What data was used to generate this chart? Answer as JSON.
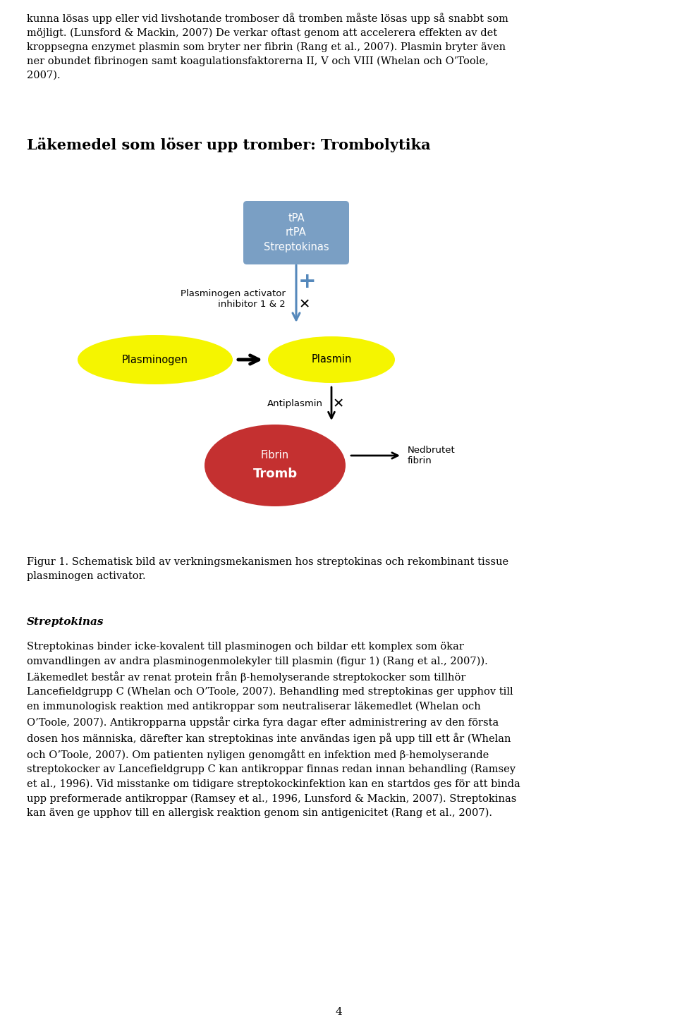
{
  "intro_text": "kunna lösas upp eller vid livshotande tromboser då tromben måste lösas upp så snabbt som\nmöjligt. (Lunsford & Mackin, 2007) De verkar oftast genom att accelerera effekten av det\nkroppsegna enzymet plasmin som bryter ner fibrin (Rang et al., 2007). Plasmin bryter även\nner obundet fibrinogen samt koagulationsfaktorerna II, V och VIII (Whelan och O’Toole,\n2007).",
  "title_text": "Läkemedel som löser upp tromber: Trombolytika",
  "box_tpa_color": "#7a9fc4",
  "box_tpa_text": "tPA\nrtPA\nStreptokinas",
  "box_tpa_textcolor": "#ffffff",
  "ellipse_yellow": "#f5f500",
  "ellipse_red": "#c43030",
  "inhibitor_label": "Plasminogen activator\ninhibitor 1 & 2",
  "antiplasmin_label": "Antiplasmin",
  "nedbrutet_label": "Nedbrutet\nfibrin",
  "figur_text": "Figur 1. Schematisk bild av verkningsmekanismen hos streptokinas och rekombinant tissue\nplasminogen activator.",
  "streptokinas_heading": "Streptokinas",
  "streptokinas_body": "Streptokinas binder icke-kovalent till plasminogen och bildar ett komplex som ökar\nomvandlingen av andra plasminogenmolekyler till plasmin (figur 1) (Rang et al., 2007)).\nLäkemedlet består av renat protein från β-hemolyserande streptokocker som tillhör\nLancefieldgrupp C (Whelan och O’Toole, 2007). Behandling med streptokinas ger upphov till\nen immunologisk reaktion med antikroppar som neutraliserar läkemedlet (Whelan och\nO’Toole, 2007). Antikropparna uppstår cirka fyra dagar efter administrering av den första\ndosen hos människa, därefter kan streptokinas inte användas igen på upp till ett år (Whelan\noch O’Toole, 2007). Om patienten nyligen genomgått en infektion med β-hemolyserande\nstreptokocker av Lancefieldgrupp C kan antikroppar finnas redan innan behandling (Ramsey\net al., 1996). Vid misstanke om tidigare streptokockinfektion kan en startdos ges för att binda\nupp preformerade antikroppar (Ramsey et al., 1996, Lunsford & Mackin, 2007). Streptokinas\nkan även ge upphov till en allergisk reaktion genom sin antigenicitet (Rang et al., 2007).",
  "page_number": "4",
  "background_color": "#ffffff",
  "text_color": "#000000",
  "arrow_blue": "#5588bb",
  "arrow_black": "#000000"
}
